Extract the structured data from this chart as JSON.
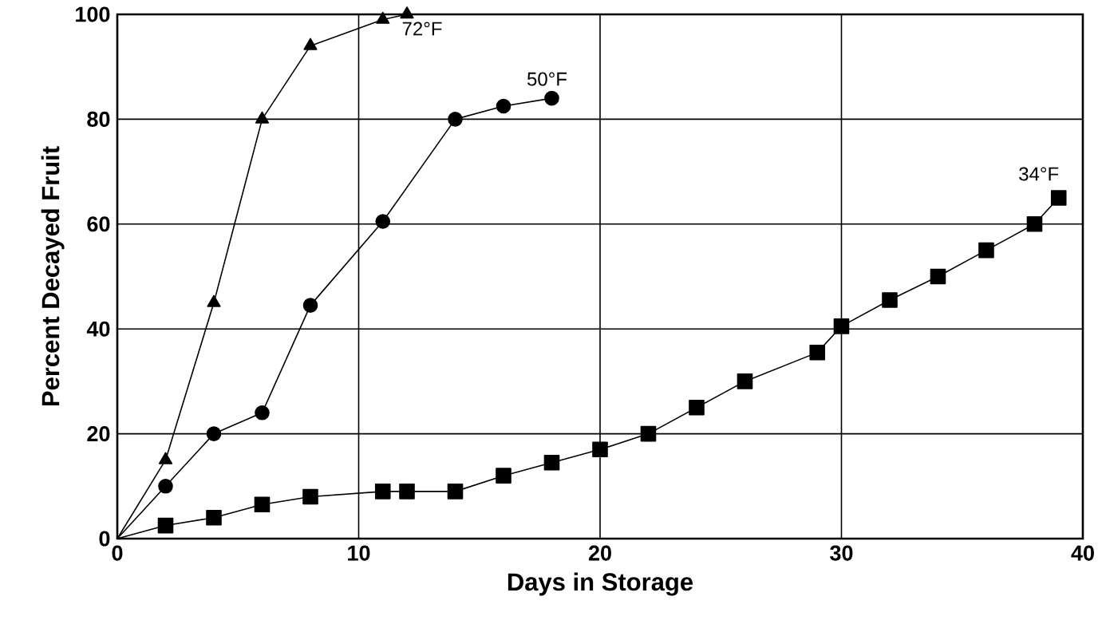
{
  "chart_data": {
    "type": "line",
    "xlabel": "Days in Storage",
    "ylabel": "Percent Decayed Fruit",
    "xlim": [
      0,
      40
    ],
    "ylim": [
      0,
      100
    ],
    "xticks": [
      0,
      10,
      20,
      30,
      40
    ],
    "yticks": [
      0,
      20,
      40,
      60,
      80,
      100
    ],
    "grid": true,
    "legend": false,
    "line_style": "solid",
    "series": [
      {
        "name": "72°F",
        "color": "#000000",
        "marker": "triangle",
        "x": [
          0,
          2,
          4,
          6,
          8,
          11,
          12
        ],
        "values": [
          0,
          15,
          45,
          80,
          94,
          99,
          100
        ]
      },
      {
        "name": "50°F",
        "color": "#000000",
        "marker": "circle",
        "x": [
          0,
          2,
          4,
          6,
          8,
          11,
          14,
          16,
          18
        ],
        "values": [
          0,
          10,
          20,
          24,
          44.5,
          60.5,
          80,
          82.5,
          84
        ]
      },
      {
        "name": "34°F",
        "color": "#000000",
        "marker": "square",
        "x": [
          0,
          2,
          4,
          6,
          8,
          11,
          12,
          14,
          16,
          18,
          20,
          22,
          24,
          26,
          29,
          30,
          32,
          34,
          36,
          38,
          39
        ],
        "values": [
          0,
          2.5,
          4,
          6.5,
          8,
          9,
          9,
          9,
          12,
          14.5,
          17,
          20,
          25,
          30,
          35.5,
          40.5,
          45.5,
          50,
          55,
          60,
          65
        ]
      }
    ]
  }
}
